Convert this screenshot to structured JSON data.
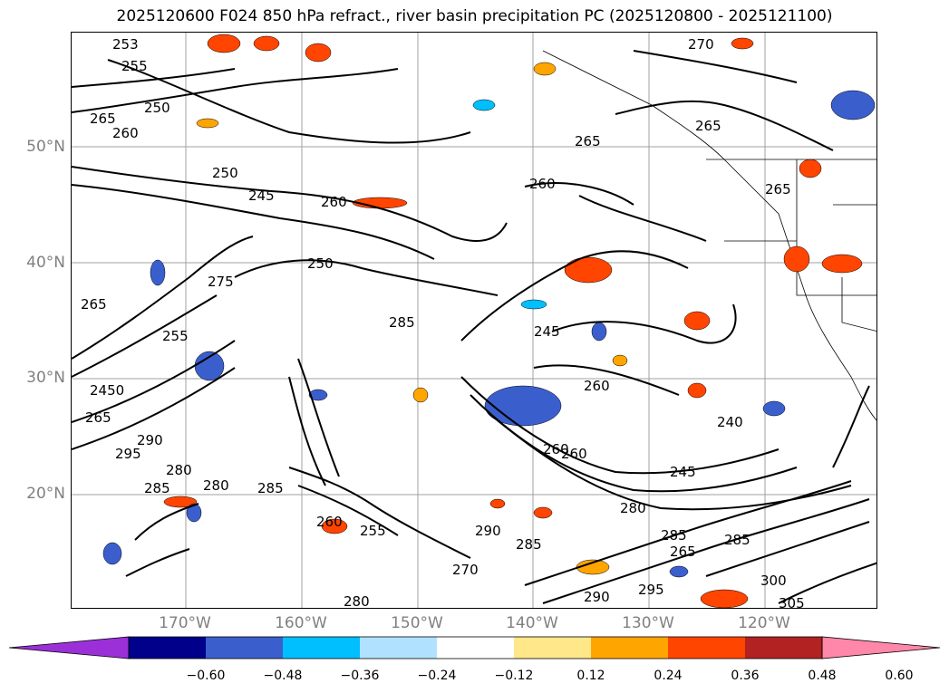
{
  "title": "2025120600 F024 850 hPa refract., river basin precipitation PC (2025120800 - 2025121100)",
  "lat_labels": [
    "50°N",
    "40°N",
    "30°N",
    "20°N"
  ],
  "lon_labels": [
    "170°W",
    "160°W",
    "150°W",
    "140°W",
    "130°W",
    "120°W"
  ],
  "colorbar": {
    "ticks": [
      "−0.60",
      "−0.48",
      "−0.36",
      "−0.24",
      "−0.12",
      "0.12",
      "0.24",
      "0.36",
      "0.48",
      "0.60"
    ],
    "colors": [
      "#9b30d9",
      "#00008b",
      "#3a5fcd",
      "#00bfff",
      "#b0e2ff",
      "#ffffff",
      "#ffe78a",
      "#ffa500",
      "#ff4500",
      "#b22222",
      "#ff88aa"
    ]
  },
  "contour_labels": [
    "253",
    "255",
    "265",
    "250",
    "260",
    "270",
    "265",
    "250",
    "245",
    "260",
    "260",
    "265",
    "265",
    "250",
    "275",
    "265",
    "285",
    "245",
    "255",
    "2450",
    "265",
    "260",
    "260",
    "240",
    "295",
    "290",
    "280",
    "285",
    "280",
    "285",
    "260",
    "255",
    "290",
    "285",
    "280",
    "285",
    "265",
    "285",
    "300",
    "305",
    "280",
    "290",
    "295",
    "270",
    "260",
    "245"
  ],
  "fill_colors": {
    "positive_light": "#ffe78a",
    "positive_mid": "#ffa500",
    "positive_strong": "#ff4500",
    "negative_light": "#b0e2ff",
    "negative_mid": "#00bfff",
    "negative_strong": "#3a5fcd"
  }
}
